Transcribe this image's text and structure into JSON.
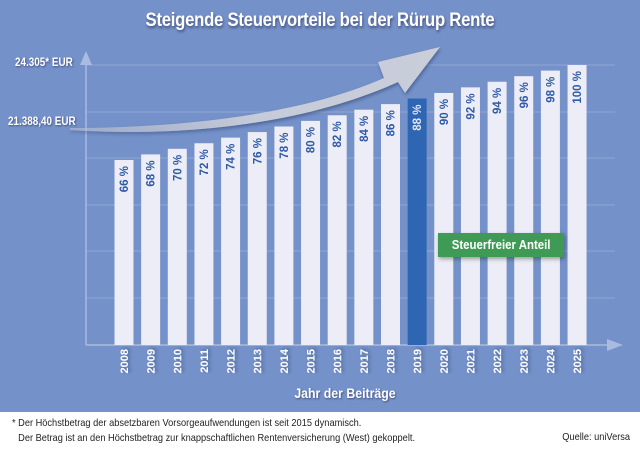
{
  "chart_data": {
    "type": "bar",
    "title": "Steigende Steuervorteile bei der Rürup Rente",
    "xlabel": "Jahr der Beiträge",
    "ylabel": "",
    "categories": [
      "2008",
      "2009",
      "2010",
      "2011",
      "2012",
      "2013",
      "2014",
      "2015",
      "2016",
      "2017",
      "2018",
      "2019",
      "2020",
      "2021",
      "2022",
      "2023",
      "2024",
      "2025"
    ],
    "values": [
      66,
      68,
      70,
      72,
      74,
      76,
      78,
      80,
      82,
      84,
      86,
      88,
      90,
      92,
      94,
      96,
      98,
      100
    ],
    "value_labels": [
      "66 %",
      "68 %",
      "70 %",
      "72 %",
      "74 %",
      "76 %",
      "78 %",
      "80 %",
      "82 %",
      "84 %",
      "86 %",
      "88 %",
      "90 %",
      "92 %",
      "94 %",
      "96 %",
      "98 %",
      "100 %"
    ],
    "unit": "%",
    "highlight_category": "2019",
    "y_axis_labels": [
      {
        "text": "24.305* EUR",
        "note": "upper reference"
      },
      {
        "text": "21.388,40 EUR",
        "note": "lower reference"
      }
    ],
    "legend": [
      {
        "label": "Steuerfreier Anteil",
        "color": "#3e9a54"
      }
    ],
    "annotations": [
      "Rising trend arrow above bars"
    ],
    "grid": true,
    "legend_position": "inside-right"
  },
  "colors": {
    "background": "#7591c9",
    "bar": "#ecedf6",
    "bar_highlight": "#2f66b3",
    "bar_text": "#2e5aa6",
    "bar_text_highlight": "#dfe6f4",
    "legend_green": "#3e9a54",
    "arrow": "#c3c9d8"
  },
  "header": {
    "title": "Steigende Steuervorteile bei der Rürup Rente"
  },
  "axis": {
    "y_top_label": "24.305* EUR",
    "y_mid_label": "21.388,40 EUR",
    "x_title": "Jahr der Beiträge"
  },
  "legend": {
    "label": "Steuerfreier Anteil"
  },
  "footer": {
    "note_line1": "* Der Höchstbetrag der absetzbaren Vorsorgeaufwendungen ist seit 2015 dynamisch.",
    "note_line2": "Der Betrag ist an den Höchstbetrag zur knappschaftlichen Rentenversicherung (West) gekoppelt.",
    "source": "Quelle: uniVersa"
  }
}
